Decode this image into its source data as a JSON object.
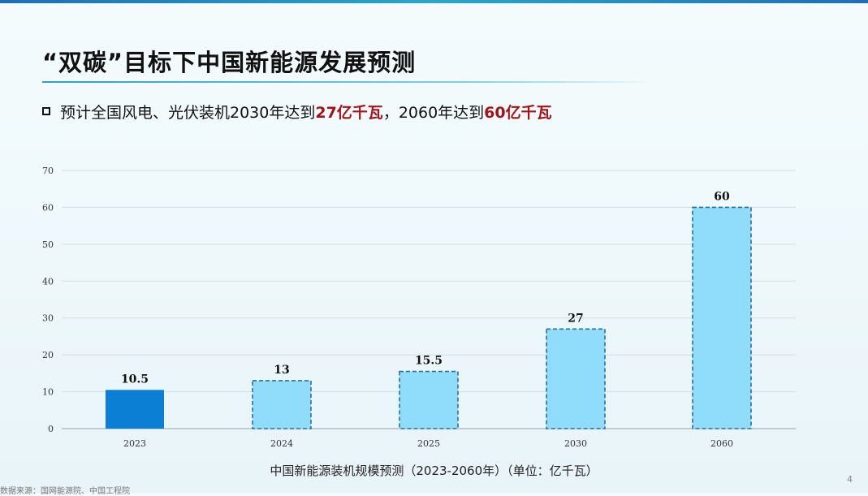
{
  "slide": {
    "title": "“双碳”目标下中国新能源发展预测",
    "bullet": {
      "prefix": "预计全国风电、光伏装机2030年达到",
      "highlight1": "27亿千瓦",
      "middle": "，2060年达到",
      "highlight2": "60亿千瓦"
    },
    "caption": "中国新能源装机规模预测（2023-2060年）（单位：亿千瓦）",
    "source": "数据来源：国网能源院、中国工程院",
    "page_number": "4"
  },
  "colors": {
    "actual_bar": "#0a7fd4",
    "forecast_bar": "#8fdcfb",
    "forecast_border": "#2b6fa3",
    "highlight_text": "#a0141a"
  },
  "chart_data": {
    "type": "bar",
    "categories": [
      "2023",
      "2024",
      "2025",
      "2030",
      "2060"
    ],
    "values": [
      10.5,
      13,
      15.5,
      27,
      60
    ],
    "data_labels": [
      "10.5",
      "13",
      "15.5",
      "27",
      "60"
    ],
    "bar_style": [
      "actual",
      "forecast",
      "forecast",
      "forecast",
      "forecast"
    ],
    "ylim": [
      0,
      70
    ],
    "y_ticks": [
      0,
      10,
      20,
      30,
      40,
      50,
      60,
      70
    ],
    "grid": true,
    "title": "",
    "xlabel": "",
    "ylabel": ""
  }
}
